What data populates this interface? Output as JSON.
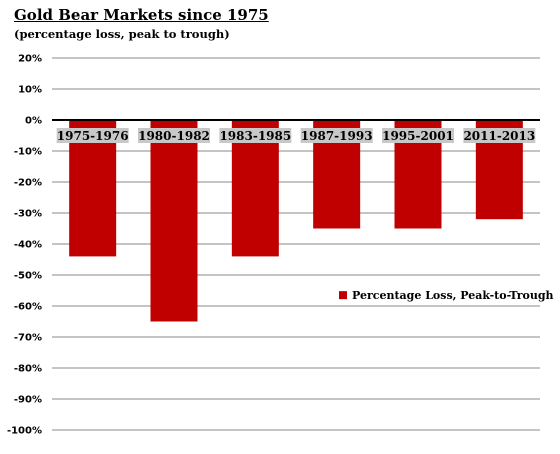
{
  "chart_data": {
    "type": "bar",
    "title": "Gold Bear Markets since 1975",
    "subtitle": "(percentage loss, peak to trough)",
    "categories": [
      "1975-1976",
      "1980-1982",
      "1983-1985",
      "1987-1993",
      "1995-2001",
      "2011-2013"
    ],
    "series": [
      {
        "name": "Percentage Loss, Peak-to-Trough",
        "color": "#c00000",
        "values": [
          -44,
          -65,
          -44,
          -35,
          -35,
          -32
        ]
      }
    ],
    "ylim": [
      -100,
      20
    ],
    "yticks": [
      20,
      10,
      0,
      -10,
      -20,
      -30,
      -40,
      -50,
      -60,
      -70,
      -80,
      -90,
      -100
    ],
    "ytick_labels": [
      "20%",
      "10%",
      "0%",
      "-10%",
      "-20%",
      "-30%",
      "-40%",
      "-50%",
      "-60%",
      "-70%",
      "-80%",
      "-90%",
      "-100%"
    ],
    "grid": true,
    "legend_position": "right-middle"
  }
}
